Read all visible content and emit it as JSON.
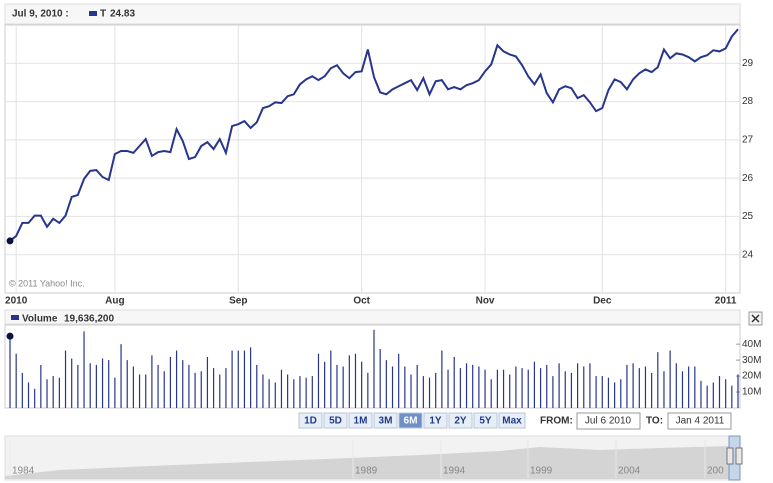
{
  "header": {
    "date": "Jul 9, 2010 :",
    "series_name": "T",
    "hover_value": 24.83,
    "volume_name": "Volume",
    "hover_volume": "19,636,200"
  },
  "copyright": "© 2011 Yahoo! Inc.",
  "chart_data": [
    {
      "type": "line",
      "xlim": [
        0,
        118
      ],
      "ylim": [
        23,
        30
      ],
      "yticks": [
        24,
        25,
        26,
        27,
        28,
        29
      ],
      "grid": true,
      "xticks": [
        {
          "value": 1,
          "label": "2010"
        },
        {
          "value": 17,
          "label": "Aug"
        },
        {
          "value": 37,
          "label": "Sep"
        },
        {
          "value": 57,
          "label": "Oct"
        },
        {
          "value": 77,
          "label": "Nov"
        },
        {
          "value": 96,
          "label": "Dec"
        },
        {
          "value": 116,
          "label": "2011"
        }
      ],
      "series": [
        {
          "name": "T",
          "color": "#27368c",
          "values": [
            24.36,
            24.49,
            24.83,
            24.83,
            25.02,
            25.02,
            24.73,
            24.94,
            24.83,
            25.02,
            25.51,
            25.56,
            25.98,
            26.19,
            26.21,
            26.03,
            25.95,
            26.63,
            26.71,
            26.71,
            26.66,
            26.84,
            27.02,
            26.58,
            26.68,
            26.71,
            26.68,
            27.28,
            26.97,
            26.5,
            26.55,
            26.84,
            26.94,
            26.76,
            27.02,
            26.66,
            27.36,
            27.41,
            27.49,
            27.31,
            27.46,
            27.83,
            27.88,
            27.98,
            27.96,
            28.14,
            28.19,
            28.45,
            28.58,
            28.66,
            28.56,
            28.66,
            28.87,
            28.95,
            28.74,
            28.61,
            28.77,
            28.79,
            29.36,
            28.64,
            28.24,
            28.19,
            28.32,
            28.4,
            28.48,
            28.56,
            28.3,
            28.61,
            28.19,
            28.53,
            28.56,
            28.32,
            28.38,
            28.32,
            28.43,
            28.48,
            28.56,
            28.79,
            28.97,
            29.47,
            29.31,
            29.23,
            29.18,
            28.95,
            28.66,
            28.45,
            28.71,
            28.22,
            27.98,
            28.32,
            28.4,
            28.35,
            28.09,
            28.17,
            27.98,
            27.75,
            27.83,
            28.3,
            28.58,
            28.51,
            28.32,
            28.58,
            28.74,
            28.84,
            28.77,
            28.9,
            29.36,
            29.13,
            29.26,
            29.23,
            29.16,
            29.05,
            29.16,
            29.21,
            29.34,
            29.31,
            29.39,
            29.7,
            29.89
          ]
        }
      ]
    },
    {
      "type": "bar",
      "xlim": [
        0,
        118
      ],
      "ylim": [
        0,
        52000000
      ],
      "grid": false,
      "yticks": [
        {
          "value": 10000000,
          "label": "10M"
        },
        {
          "value": 20000000,
          "label": "20M"
        },
        {
          "value": 30000000,
          "label": "30M"
        },
        {
          "value": 40000000,
          "label": "40M"
        }
      ],
      "series": [
        {
          "name": "Volume",
          "color": "#27368c",
          "values": [
            45000000,
            34000000,
            22000000,
            16000000,
            12000000,
            27000000,
            18000000,
            20000000,
            19000000,
            36000000,
            31000000,
            27000000,
            48000000,
            28000000,
            27000000,
            31000000,
            30000000,
            19000000,
            40000000,
            30000000,
            26000000,
            21000000,
            21000000,
            33000000,
            27000000,
            23000000,
            32000000,
            36000000,
            30000000,
            27000000,
            22000000,
            23000000,
            32000000,
            25000000,
            21000000,
            25000000,
            36000000,
            36000000,
            36000000,
            38000000,
            27000000,
            21000000,
            18000000,
            16000000,
            24000000,
            21000000,
            18000000,
            20000000,
            19000000,
            20000000,
            34000000,
            29000000,
            36000000,
            27000000,
            26000000,
            33000000,
            34000000,
            29000000,
            22000000,
            49000000,
            37000000,
            30000000,
            26000000,
            34000000,
            26000000,
            21000000,
            27000000,
            20000000,
            19000000,
            22000000,
            36000000,
            24000000,
            32000000,
            25000000,
            28000000,
            27000000,
            26000000,
            24000000,
            18000000,
            24000000,
            24000000,
            21000000,
            26000000,
            25000000,
            24000000,
            29000000,
            25000000,
            27000000,
            20000000,
            28000000,
            23000000,
            22000000,
            28000000,
            26000000,
            28000000,
            20000000,
            20000000,
            19000000,
            16000000,
            18000000,
            27000000,
            28000000,
            25000000,
            26000000,
            22000000,
            35000000,
            23000000,
            36000000,
            28000000,
            23000000,
            26000000,
            26000000,
            17000000,
            14000000,
            16000000,
            20000000,
            18000000,
            14000000,
            21000000
          ]
        }
      ]
    }
  ],
  "range_buttons": [
    "1D",
    "5D",
    "1M",
    "3M",
    "6M",
    "1Y",
    "2Y",
    "5Y",
    "Max"
  ],
  "from_label": "FROM:",
  "from_date": "Jul 6 2010",
  "to_label": "TO:",
  "to_date": "Jan 4 2011",
  "navigator_years": [
    "1984",
    "1989",
    "1994",
    "1999",
    "2004",
    "200"
  ]
}
